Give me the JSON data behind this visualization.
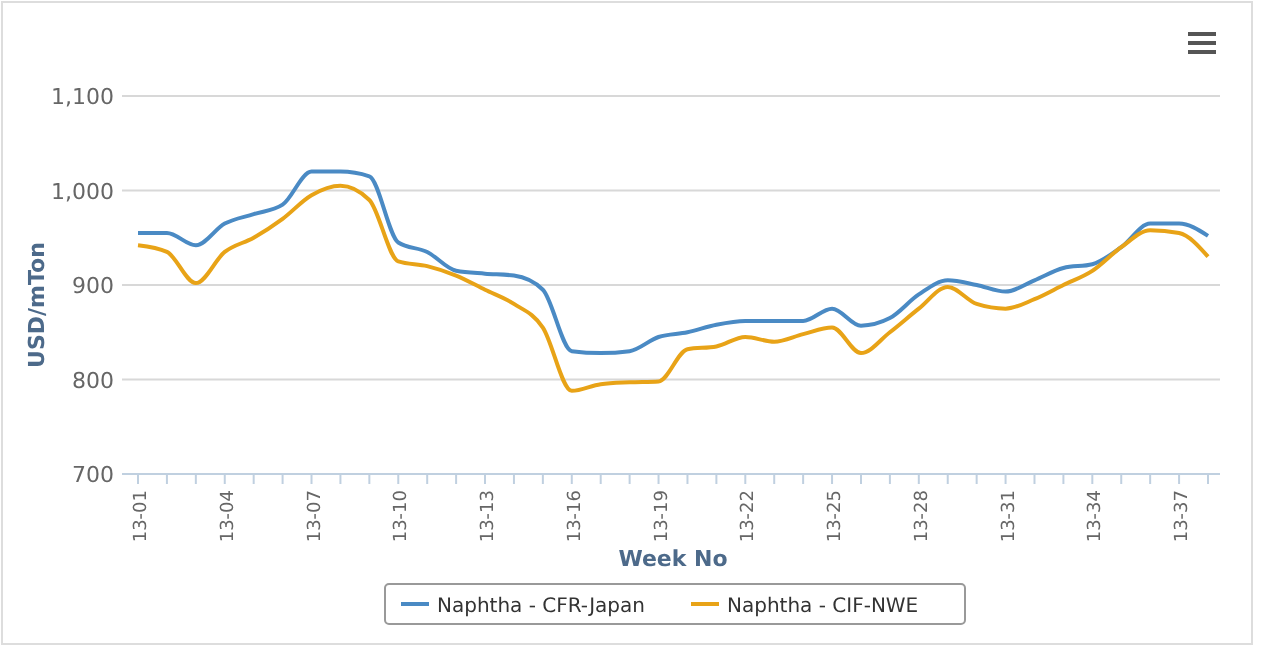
{
  "chart_data": {
    "type": "line",
    "xlabel": "Week No",
    "ylabel": "USD/mTon",
    "categories": [
      "13-01",
      null,
      null,
      "13-04",
      null,
      null,
      "13-07",
      null,
      null,
      "13-10",
      null,
      null,
      "13-13",
      null,
      null,
      "13-16",
      null,
      null,
      "13-19",
      null,
      null,
      "13-22",
      null,
      null,
      "13-25",
      null,
      null,
      "13-28",
      null,
      null,
      "13-31",
      null,
      null,
      "13-34",
      null,
      null,
      "13-37",
      null
    ],
    "series": [
      {
        "name": "Naphtha - CFR-Japan",
        "color": "#4a8ac4",
        "values": [
          955,
          955,
          942,
          965,
          975,
          985,
          1020,
          1020,
          1015,
          945,
          935,
          915,
          912,
          910,
          895,
          830,
          828,
          830,
          845,
          850,
          858,
          862,
          862,
          862,
          875,
          857,
          865,
          890,
          905,
          900,
          893,
          905,
          918,
          922,
          940,
          965,
          965,
          952
        ]
      },
      {
        "name": "Naphtha - CIF-NWE",
        "color": "#e8a317",
        "values": [
          942,
          935,
          902,
          935,
          950,
          970,
          995,
          1005,
          990,
          925,
          920,
          910,
          895,
          880,
          855,
          788,
          795,
          797,
          798,
          832,
          835,
          845,
          840,
          848,
          855,
          828,
          850,
          875,
          898,
          880,
          875,
          885,
          900,
          915,
          940,
          958,
          955,
          930
        ]
      }
    ],
    "ylim": [
      700,
      1100
    ],
    "yticks": [
      {
        "value": 700,
        "label": "700"
      },
      {
        "value": 800,
        "label": "800"
      },
      {
        "value": 900,
        "label": "900"
      },
      {
        "value": 1000,
        "label": "1,000"
      },
      {
        "value": 1100,
        "label": "1,100"
      }
    ],
    "grid": "y",
    "legend": "bottom",
    "marker": "none",
    "line_style": "solid"
  }
}
